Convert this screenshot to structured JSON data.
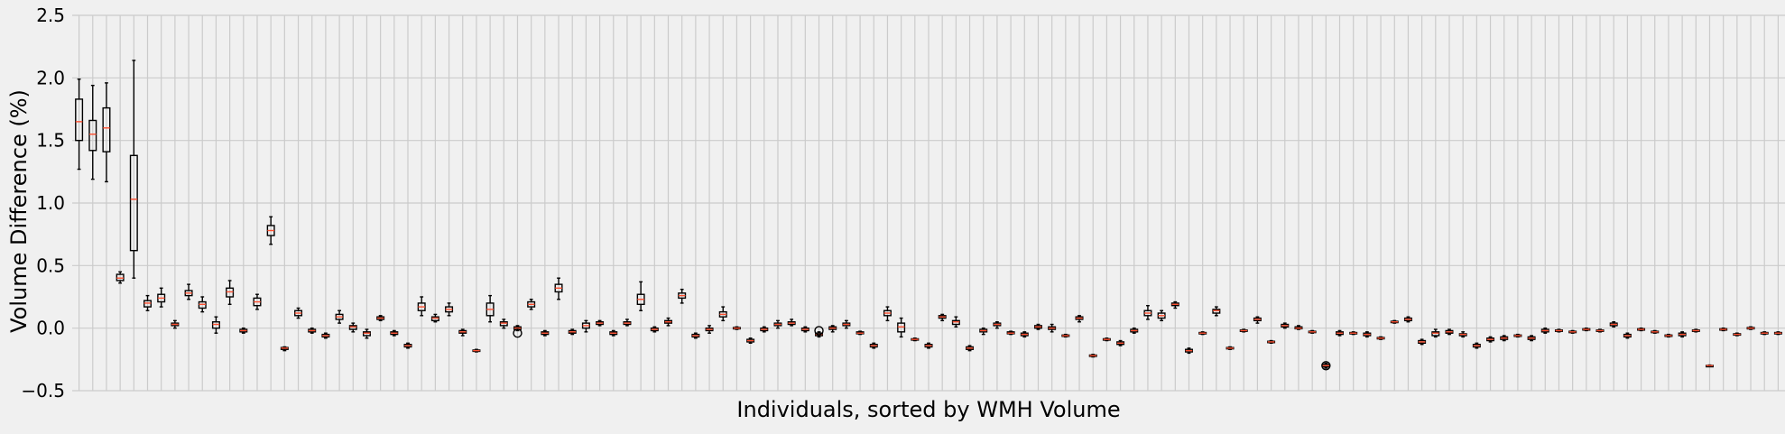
{
  "chart_data": {
    "type": "box",
    "title": "",
    "xlabel": "Individuals, sorted by WMH Volume",
    "ylabel": "Volume Difference (%)",
    "ylim": [
      -0.5,
      2.5
    ],
    "yticks": [
      -0.5,
      0.0,
      0.5,
      1.0,
      1.5,
      2.0,
      2.5
    ],
    "ytick_labels": [
      "−0.5",
      "0.0",
      "0.5",
      "1.0",
      "1.5",
      "2.0",
      "2.5"
    ],
    "grid": true,
    "colors": {
      "background": "#f0f0f0",
      "grid": "#cbcbcb",
      "box": "#000000",
      "median": "#fc4f30"
    },
    "boxes": [
      {
        "median": 1.65,
        "q1": 1.5,
        "q3": 1.83,
        "whislo": 1.27,
        "whishi": 1.99,
        "fliers": []
      },
      {
        "median": 1.55,
        "q1": 1.42,
        "q3": 1.66,
        "whislo": 1.19,
        "whishi": 1.94,
        "fliers": []
      },
      {
        "median": 1.6,
        "q1": 1.41,
        "q3": 1.76,
        "whislo": 1.17,
        "whishi": 1.96,
        "fliers": []
      },
      {
        "median": 0.4,
        "q1": 0.38,
        "q3": 0.43,
        "whislo": 0.36,
        "whishi": 0.45,
        "fliers": []
      },
      {
        "median": 1.03,
        "q1": 0.62,
        "q3": 1.38,
        "whislo": 0.4,
        "whishi": 2.14,
        "fliers": []
      },
      {
        "median": 0.2,
        "q1": 0.17,
        "q3": 0.22,
        "whislo": 0.14,
        "whishi": 0.26,
        "fliers": []
      },
      {
        "median": 0.24,
        "q1": 0.21,
        "q3": 0.27,
        "whislo": 0.17,
        "whishi": 0.32,
        "fliers": []
      },
      {
        "median": 0.03,
        "q1": 0.02,
        "q3": 0.04,
        "whislo": 0.0,
        "whishi": 0.06,
        "fliers": []
      },
      {
        "median": 0.28,
        "q1": 0.26,
        "q3": 0.3,
        "whislo": 0.23,
        "whishi": 0.35,
        "fliers": []
      },
      {
        "median": 0.19,
        "q1": 0.16,
        "q3": 0.21,
        "whislo": 0.13,
        "whishi": 0.25,
        "fliers": []
      },
      {
        "median": 0.03,
        "q1": 0.0,
        "q3": 0.05,
        "whislo": -0.04,
        "whishi": 0.09,
        "fliers": []
      },
      {
        "median": 0.29,
        "q1": 0.25,
        "q3": 0.32,
        "whislo": 0.19,
        "whishi": 0.38,
        "fliers": []
      },
      {
        "median": -0.02,
        "q1": -0.03,
        "q3": -0.01,
        "whislo": -0.04,
        "whishi": 0.0,
        "fliers": []
      },
      {
        "median": 0.21,
        "q1": 0.18,
        "q3": 0.24,
        "whislo": 0.15,
        "whishi": 0.27,
        "fliers": []
      },
      {
        "median": 0.78,
        "q1": 0.74,
        "q3": 0.82,
        "whislo": 0.67,
        "whishi": 0.89,
        "fliers": []
      },
      {
        "median": -0.16,
        "q1": -0.17,
        "q3": -0.155,
        "whislo": -0.18,
        "whishi": -0.15,
        "fliers": []
      },
      {
        "median": 0.12,
        "q1": 0.1,
        "q3": 0.14,
        "whislo": 0.08,
        "whishi": 0.16,
        "fliers": []
      },
      {
        "median": -0.02,
        "q1": -0.03,
        "q3": -0.01,
        "whislo": -0.04,
        "whishi": 0.0,
        "fliers": []
      },
      {
        "median": -0.06,
        "q1": -0.07,
        "q3": -0.05,
        "whislo": -0.08,
        "whishi": -0.04,
        "fliers": []
      },
      {
        "median": 0.09,
        "q1": 0.07,
        "q3": 0.11,
        "whislo": 0.04,
        "whishi": 0.14,
        "fliers": []
      },
      {
        "median": 0.01,
        "q1": -0.01,
        "q3": 0.02,
        "whislo": -0.03,
        "whishi": 0.04,
        "fliers": []
      },
      {
        "median": -0.04,
        "q1": -0.06,
        "q3": -0.03,
        "whislo": -0.08,
        "whishi": -0.01,
        "fliers": []
      },
      {
        "median": 0.08,
        "q1": 0.07,
        "q3": 0.09,
        "whislo": 0.06,
        "whishi": 0.1,
        "fliers": []
      },
      {
        "median": -0.04,
        "q1": -0.05,
        "q3": -0.03,
        "whislo": -0.06,
        "whishi": -0.02,
        "fliers": []
      },
      {
        "median": -0.14,
        "q1": -0.15,
        "q3": -0.13,
        "whislo": -0.16,
        "whishi": -0.12,
        "fliers": []
      },
      {
        "median": 0.17,
        "q1": 0.14,
        "q3": 0.2,
        "whislo": 0.1,
        "whishi": 0.25,
        "fliers": []
      },
      {
        "median": 0.08,
        "q1": 0.06,
        "q3": 0.09,
        "whislo": 0.05,
        "whishi": 0.11,
        "fliers": []
      },
      {
        "median": 0.15,
        "q1": 0.13,
        "q3": 0.17,
        "whislo": 0.1,
        "whishi": 0.2,
        "fliers": []
      },
      {
        "median": -0.03,
        "q1": -0.04,
        "q3": -0.02,
        "whislo": -0.06,
        "whishi": -0.01,
        "fliers": []
      },
      {
        "median": -0.18,
        "q1": -0.185,
        "q3": -0.175,
        "whislo": -0.19,
        "whishi": -0.17,
        "fliers": []
      },
      {
        "median": 0.15,
        "q1": 0.1,
        "q3": 0.2,
        "whislo": 0.05,
        "whishi": 0.26,
        "fliers": []
      },
      {
        "median": 0.04,
        "q1": 0.02,
        "q3": 0.05,
        "whislo": 0.0,
        "whishi": 0.07,
        "fliers": []
      },
      {
        "median": 0.0,
        "q1": -0.01,
        "q3": 0.01,
        "whislo": -0.02,
        "whishi": 0.02,
        "fliers": [
          -0.04
        ]
      },
      {
        "median": 0.19,
        "q1": 0.17,
        "q3": 0.21,
        "whislo": 0.15,
        "whishi": 0.23,
        "fliers": []
      },
      {
        "median": -0.04,
        "q1": -0.05,
        "q3": -0.03,
        "whislo": -0.06,
        "whishi": -0.02,
        "fliers": []
      },
      {
        "median": 0.32,
        "q1": 0.29,
        "q3": 0.35,
        "whislo": 0.23,
        "whishi": 0.4,
        "fliers": []
      },
      {
        "median": -0.03,
        "q1": -0.04,
        "q3": -0.02,
        "whislo": -0.05,
        "whishi": -0.01,
        "fliers": []
      },
      {
        "median": 0.02,
        "q1": 0.0,
        "q3": 0.04,
        "whislo": -0.03,
        "whishi": 0.06,
        "fliers": []
      },
      {
        "median": 0.04,
        "q1": 0.03,
        "q3": 0.05,
        "whislo": 0.02,
        "whishi": 0.06,
        "fliers": []
      },
      {
        "median": -0.04,
        "q1": -0.05,
        "q3": -0.03,
        "whislo": -0.06,
        "whishi": -0.02,
        "fliers": []
      },
      {
        "median": 0.04,
        "q1": 0.03,
        "q3": 0.05,
        "whislo": 0.02,
        "whishi": 0.07,
        "fliers": []
      },
      {
        "median": 0.23,
        "q1": 0.19,
        "q3": 0.27,
        "whislo": 0.14,
        "whishi": 0.37,
        "fliers": []
      },
      {
        "median": -0.01,
        "q1": -0.02,
        "q3": 0.0,
        "whislo": -0.03,
        "whishi": 0.01,
        "fliers": []
      },
      {
        "median": 0.05,
        "q1": 0.04,
        "q3": 0.06,
        "whislo": 0.02,
        "whishi": 0.08,
        "fliers": []
      },
      {
        "median": 0.26,
        "q1": 0.24,
        "q3": 0.28,
        "whislo": 0.2,
        "whishi": 0.31,
        "fliers": []
      },
      {
        "median": -0.06,
        "q1": -0.07,
        "q3": -0.05,
        "whislo": -0.08,
        "whishi": -0.04,
        "fliers": []
      },
      {
        "median": -0.01,
        "q1": -0.02,
        "q3": 0.0,
        "whislo": -0.04,
        "whishi": 0.02,
        "fliers": []
      },
      {
        "median": 0.11,
        "q1": 0.09,
        "q3": 0.13,
        "whislo": 0.06,
        "whishi": 0.17,
        "fliers": []
      },
      {
        "median": 0.0,
        "q1": -0.005,
        "q3": 0.005,
        "whislo": -0.01,
        "whishi": 0.01,
        "fliers": []
      },
      {
        "median": -0.1,
        "q1": -0.11,
        "q3": -0.09,
        "whislo": -0.12,
        "whishi": -0.08,
        "fliers": []
      },
      {
        "median": -0.01,
        "q1": -0.02,
        "q3": 0.0,
        "whislo": -0.03,
        "whishi": 0.01,
        "fliers": []
      },
      {
        "median": 0.03,
        "q1": 0.02,
        "q3": 0.04,
        "whislo": 0.0,
        "whishi": 0.06,
        "fliers": []
      },
      {
        "median": 0.04,
        "q1": 0.03,
        "q3": 0.05,
        "whislo": 0.02,
        "whishi": 0.07,
        "fliers": []
      },
      {
        "median": -0.01,
        "q1": -0.02,
        "q3": 0.0,
        "whislo": -0.03,
        "whishi": 0.01,
        "fliers": []
      },
      {
        "median": -0.05,
        "q1": -0.06,
        "q3": -0.04,
        "whislo": -0.07,
        "whishi": -0.03,
        "fliers": [
          -0.02
        ]
      },
      {
        "median": 0.0,
        "q1": -0.01,
        "q3": 0.01,
        "whislo": -0.03,
        "whishi": 0.02,
        "fliers": []
      },
      {
        "median": 0.03,
        "q1": 0.02,
        "q3": 0.04,
        "whislo": 0.0,
        "whishi": 0.06,
        "fliers": []
      },
      {
        "median": -0.04,
        "q1": -0.045,
        "q3": -0.03,
        "whislo": -0.05,
        "whishi": -0.025,
        "fliers": []
      },
      {
        "median": -0.14,
        "q1": -0.15,
        "q3": -0.13,
        "whislo": -0.16,
        "whishi": -0.12,
        "fliers": []
      },
      {
        "median": 0.12,
        "q1": 0.1,
        "q3": 0.14,
        "whislo": 0.06,
        "whishi": 0.17,
        "fliers": []
      },
      {
        "median": 0.01,
        "q1": -0.03,
        "q3": 0.04,
        "whislo": -0.07,
        "whishi": 0.08,
        "fliers": []
      },
      {
        "median": -0.09,
        "q1": -0.095,
        "q3": -0.085,
        "whislo": -0.1,
        "whishi": -0.08,
        "fliers": []
      },
      {
        "median": -0.14,
        "q1": -0.15,
        "q3": -0.13,
        "whislo": -0.16,
        "whishi": -0.12,
        "fliers": []
      },
      {
        "median": 0.09,
        "q1": 0.08,
        "q3": 0.1,
        "whislo": 0.06,
        "whishi": 0.11,
        "fliers": []
      },
      {
        "median": 0.05,
        "q1": 0.03,
        "q3": 0.06,
        "whislo": 0.01,
        "whishi": 0.09,
        "fliers": []
      },
      {
        "median": -0.16,
        "q1": -0.17,
        "q3": -0.15,
        "whislo": -0.18,
        "whishi": -0.14,
        "fliers": []
      },
      {
        "median": -0.02,
        "q1": -0.03,
        "q3": -0.01,
        "whislo": -0.05,
        "whishi": 0.0,
        "fliers": []
      },
      {
        "median": 0.03,
        "q1": 0.02,
        "q3": 0.04,
        "whislo": 0.0,
        "whishi": 0.05,
        "fliers": []
      },
      {
        "median": -0.04,
        "q1": -0.045,
        "q3": -0.03,
        "whislo": -0.05,
        "whishi": -0.025,
        "fliers": []
      },
      {
        "median": -0.05,
        "q1": -0.06,
        "q3": -0.04,
        "whislo": -0.07,
        "whishi": -0.03,
        "fliers": []
      },
      {
        "median": 0.01,
        "q1": 0.0,
        "q3": 0.02,
        "whislo": -0.01,
        "whishi": 0.03,
        "fliers": []
      },
      {
        "median": 0.0,
        "q1": -0.01,
        "q3": 0.01,
        "whislo": -0.03,
        "whishi": 0.03,
        "fliers": []
      },
      {
        "median": -0.06,
        "q1": -0.065,
        "q3": -0.055,
        "whislo": -0.07,
        "whishi": -0.05,
        "fliers": []
      },
      {
        "median": 0.08,
        "q1": 0.07,
        "q3": 0.09,
        "whislo": 0.05,
        "whishi": 0.1,
        "fliers": []
      },
      {
        "median": -0.22,
        "q1": -0.225,
        "q3": -0.215,
        "whislo": -0.23,
        "whishi": -0.21,
        "fliers": []
      },
      {
        "median": -0.09,
        "q1": -0.095,
        "q3": -0.085,
        "whislo": -0.1,
        "whishi": -0.08,
        "fliers": []
      },
      {
        "median": -0.12,
        "q1": -0.13,
        "q3": -0.11,
        "whislo": -0.14,
        "whishi": -0.1,
        "fliers": []
      },
      {
        "median": -0.02,
        "q1": -0.03,
        "q3": -0.01,
        "whislo": -0.04,
        "whishi": 0.0,
        "fliers": []
      },
      {
        "median": 0.12,
        "q1": 0.1,
        "q3": 0.14,
        "whislo": 0.07,
        "whishi": 0.18,
        "fliers": []
      },
      {
        "median": 0.1,
        "q1": 0.08,
        "q3": 0.12,
        "whislo": 0.06,
        "whishi": 0.14,
        "fliers": []
      },
      {
        "median": 0.19,
        "q1": 0.18,
        "q3": 0.2,
        "whislo": 0.16,
        "whishi": 0.21,
        "fliers": []
      },
      {
        "median": -0.18,
        "q1": -0.19,
        "q3": -0.17,
        "whislo": -0.2,
        "whishi": -0.16,
        "fliers": []
      },
      {
        "median": -0.04,
        "q1": -0.045,
        "q3": -0.035,
        "whislo": -0.05,
        "whishi": -0.03,
        "fliers": []
      },
      {
        "median": 0.14,
        "q1": 0.12,
        "q3": 0.15,
        "whislo": 0.1,
        "whishi": 0.17,
        "fliers": []
      },
      {
        "median": -0.16,
        "q1": -0.165,
        "q3": -0.155,
        "whislo": -0.17,
        "whishi": -0.15,
        "fliers": []
      },
      {
        "median": -0.02,
        "q1": -0.025,
        "q3": -0.015,
        "whislo": -0.03,
        "whishi": -0.01,
        "fliers": []
      },
      {
        "median": 0.07,
        "q1": 0.06,
        "q3": 0.08,
        "whislo": 0.04,
        "whishi": 0.09,
        "fliers": []
      },
      {
        "median": -0.11,
        "q1": -0.115,
        "q3": -0.105,
        "whislo": -0.12,
        "whishi": -0.1,
        "fliers": []
      },
      {
        "median": 0.02,
        "q1": 0.01,
        "q3": 0.03,
        "whislo": 0.0,
        "whishi": 0.04,
        "fliers": []
      },
      {
        "median": 0.0,
        "q1": -0.005,
        "q3": 0.01,
        "whislo": -0.01,
        "whishi": 0.02,
        "fliers": []
      },
      {
        "median": -0.03,
        "q1": -0.035,
        "q3": -0.025,
        "whislo": -0.04,
        "whishi": -0.02,
        "fliers": []
      },
      {
        "median": -0.3,
        "q1": -0.31,
        "q3": -0.29,
        "whislo": -0.32,
        "whishi": -0.28,
        "fliers": [
          -0.3
        ]
      },
      {
        "median": -0.04,
        "q1": -0.05,
        "q3": -0.03,
        "whislo": -0.06,
        "whishi": -0.02,
        "fliers": []
      },
      {
        "median": -0.04,
        "q1": -0.045,
        "q3": -0.035,
        "whislo": -0.05,
        "whishi": -0.03,
        "fliers": []
      },
      {
        "median": -0.05,
        "q1": -0.06,
        "q3": -0.04,
        "whislo": -0.07,
        "whishi": -0.03,
        "fliers": []
      },
      {
        "median": -0.08,
        "q1": -0.085,
        "q3": -0.075,
        "whislo": -0.09,
        "whishi": -0.07,
        "fliers": []
      },
      {
        "median": 0.05,
        "q1": 0.045,
        "q3": 0.055,
        "whislo": 0.04,
        "whishi": 0.06,
        "fliers": []
      },
      {
        "median": 0.07,
        "q1": 0.06,
        "q3": 0.08,
        "whislo": 0.05,
        "whishi": 0.09,
        "fliers": []
      },
      {
        "median": -0.11,
        "q1": -0.12,
        "q3": -0.1,
        "whislo": -0.13,
        "whishi": -0.09,
        "fliers": []
      },
      {
        "median": -0.04,
        "q1": -0.06,
        "q3": -0.03,
        "whislo": -0.07,
        "whishi": -0.01,
        "fliers": []
      },
      {
        "median": -0.03,
        "q1": -0.04,
        "q3": -0.02,
        "whislo": -0.05,
        "whishi": -0.01,
        "fliers": []
      },
      {
        "median": -0.05,
        "q1": -0.06,
        "q3": -0.045,
        "whislo": -0.07,
        "whishi": -0.03,
        "fliers": []
      },
      {
        "median": -0.14,
        "q1": -0.15,
        "q3": -0.13,
        "whislo": -0.16,
        "whishi": -0.12,
        "fliers": []
      },
      {
        "median": -0.09,
        "q1": -0.1,
        "q3": -0.08,
        "whislo": -0.11,
        "whishi": -0.07,
        "fliers": []
      },
      {
        "median": -0.08,
        "q1": -0.09,
        "q3": -0.07,
        "whislo": -0.1,
        "whishi": -0.06,
        "fliers": []
      },
      {
        "median": -0.06,
        "q1": -0.065,
        "q3": -0.055,
        "whislo": -0.07,
        "whishi": -0.05,
        "fliers": []
      },
      {
        "median": -0.08,
        "q1": -0.09,
        "q3": -0.07,
        "whislo": -0.1,
        "whishi": -0.06,
        "fliers": []
      },
      {
        "median": -0.02,
        "q1": -0.03,
        "q3": -0.01,
        "whislo": -0.04,
        "whishi": 0.0,
        "fliers": []
      },
      {
        "median": -0.02,
        "q1": -0.025,
        "q3": -0.015,
        "whislo": -0.03,
        "whishi": -0.01,
        "fliers": []
      },
      {
        "median": -0.03,
        "q1": -0.035,
        "q3": -0.025,
        "whislo": -0.04,
        "whishi": -0.02,
        "fliers": []
      },
      {
        "median": -0.01,
        "q1": -0.015,
        "q3": -0.005,
        "whislo": -0.02,
        "whishi": 0.0,
        "fliers": []
      },
      {
        "median": -0.02,
        "q1": -0.025,
        "q3": -0.015,
        "whislo": -0.03,
        "whishi": -0.01,
        "fliers": []
      },
      {
        "median": 0.03,
        "q1": 0.02,
        "q3": 0.04,
        "whislo": 0.01,
        "whishi": 0.05,
        "fliers": []
      },
      {
        "median": -0.06,
        "q1": -0.07,
        "q3": -0.05,
        "whislo": -0.08,
        "whishi": -0.04,
        "fliers": []
      },
      {
        "median": -0.01,
        "q1": -0.015,
        "q3": -0.005,
        "whislo": -0.02,
        "whishi": 0.0,
        "fliers": []
      },
      {
        "median": -0.03,
        "q1": -0.035,
        "q3": -0.025,
        "whislo": -0.04,
        "whishi": -0.02,
        "fliers": []
      },
      {
        "median": -0.06,
        "q1": -0.065,
        "q3": -0.055,
        "whislo": -0.07,
        "whishi": -0.05,
        "fliers": []
      },
      {
        "median": -0.05,
        "q1": -0.06,
        "q3": -0.04,
        "whislo": -0.07,
        "whishi": -0.03,
        "fliers": []
      },
      {
        "median": -0.02,
        "q1": -0.025,
        "q3": -0.015,
        "whislo": -0.03,
        "whishi": -0.01,
        "fliers": []
      },
      {
        "median": -0.3,
        "q1": -0.302,
        "q3": -0.298,
        "whislo": -0.305,
        "whishi": -0.295,
        "fliers": []
      },
      {
        "median": -0.01,
        "q1": -0.015,
        "q3": -0.005,
        "whislo": -0.02,
        "whishi": 0.0,
        "fliers": []
      },
      {
        "median": -0.05,
        "q1": -0.055,
        "q3": -0.045,
        "whislo": -0.06,
        "whishi": -0.04,
        "fliers": []
      },
      {
        "median": 0.0,
        "q1": -0.005,
        "q3": 0.005,
        "whislo": -0.01,
        "whishi": 0.01,
        "fliers": []
      },
      {
        "median": -0.04,
        "q1": -0.045,
        "q3": -0.035,
        "whislo": -0.05,
        "whishi": -0.03,
        "fliers": []
      },
      {
        "median": -0.04,
        "q1": -0.045,
        "q3": -0.035,
        "whislo": -0.05,
        "whishi": -0.03,
        "fliers": []
      }
    ]
  }
}
